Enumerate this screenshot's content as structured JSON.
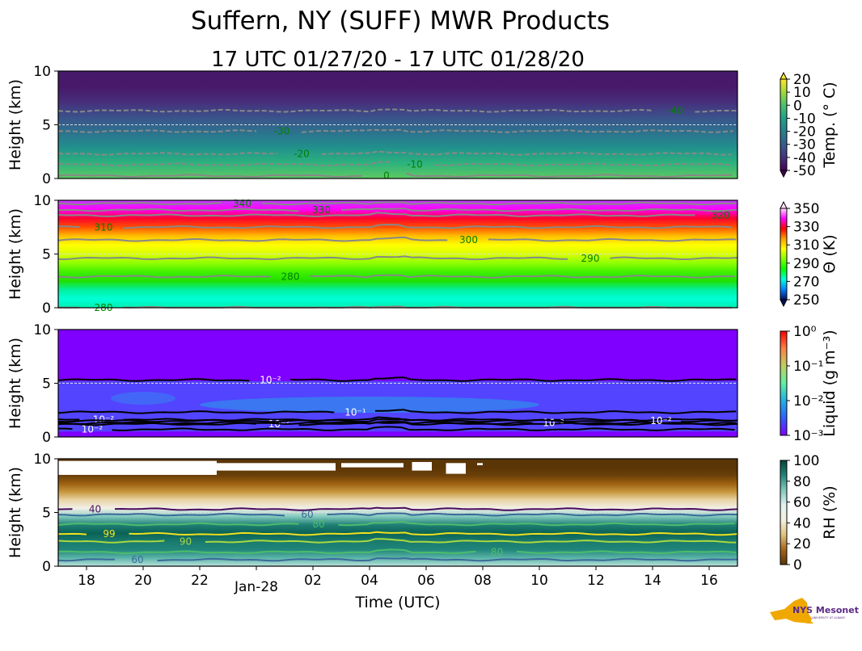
{
  "title": "Suffern, NY (SUFF) MWR Products",
  "subtitle": "17 UTC 01/27/20 - 17 UTC 01/28/20",
  "ylabel": "Height (km)",
  "xlabel": "Time (UTC)",
  "x_ticks": [
    {
      "hour": 1,
      "label": "18"
    },
    {
      "hour": 3,
      "label": "20"
    },
    {
      "hour": 5,
      "label": "22"
    },
    {
      "hour": 7,
      "label": "Jan-28"
    },
    {
      "hour": 9,
      "label": "02"
    },
    {
      "hour": 11,
      "label": "04"
    },
    {
      "hour": 13,
      "label": "06"
    },
    {
      "hour": 15,
      "label": "08"
    },
    {
      "hour": 17,
      "label": "10"
    },
    {
      "hour": 19,
      "label": "12"
    },
    {
      "hour": 21,
      "label": "14"
    },
    {
      "hour": 23,
      "label": "16"
    }
  ],
  "logo": {
    "text": "NYS Mesonet",
    "subtext": "UNIVERSITY AT ALBANY",
    "color": "#f0a800",
    "text_color": "#5b2a86"
  },
  "chart_data": [
    {
      "type": "heatmap",
      "name": "temperature",
      "xlim_hours_since_17utc": [
        0,
        24
      ],
      "ylim": [
        0,
        10
      ],
      "y_ticks": [
        "0",
        "5",
        "10"
      ],
      "colorbar": {
        "label": "Temp. (° C)",
        "ticks": [
          "20",
          "10",
          "0",
          "-10",
          "-20",
          "-30",
          "-40",
          "-50"
        ],
        "extend": "both",
        "colors": [
          "#fde725",
          "#a0da39",
          "#4ac16d",
          "#1fa187",
          "#277f8e",
          "#365c8d",
          "#46327e",
          "#440154"
        ]
      },
      "fill_colors_bottom_to_top": [
        "#5ec962",
        "#2db27d",
        "#21918c",
        "#2c728e",
        "#3b528b",
        "#472d7b",
        "#48186a",
        "#451a6b"
      ],
      "contours": [
        {
          "level": 0,
          "label": "0",
          "km": 0.25,
          "label_hour": 11.6,
          "dashed": false
        },
        {
          "level": -10,
          "label": "-10",
          "km": 1.3,
          "label_hour": 12.6,
          "dashed": true
        },
        {
          "level": -20,
          "label": "-20",
          "km": 2.3,
          "label_hour": 8.6,
          "dashed": true
        },
        {
          "level": -30,
          "label": "-30",
          "km": 4.4,
          "label_hour": 7.9,
          "dashed": true
        },
        {
          "level": -40,
          "label": "-40",
          "km": 6.3,
          "label_hour": 21.8,
          "dashed": true
        }
      ],
      "contour_line_color": "#888888",
      "contour_label_color": "#008000"
    },
    {
      "type": "heatmap",
      "name": "potential-temperature",
      "xlim_hours_since_17utc": [
        0,
        24
      ],
      "ylim": [
        0,
        10
      ],
      "y_ticks": [
        "0",
        "5",
        "10"
      ],
      "colorbar": {
        "label": "Θ (K)",
        "ticks": [
          "350",
          "330",
          "310",
          "290",
          "270",
          "250"
        ],
        "extend": "both",
        "colors": [
          "#ffe0ff",
          "#ff00ff",
          "#ff0000",
          "#ffa000",
          "#ffff00",
          "#80ff00",
          "#00ff00",
          "#00ffe0",
          "#0080ff",
          "#001060"
        ]
      },
      "fill_colors_bottom_to_top": [
        "#00f0b0",
        "#00ffd8",
        "#00f0a0",
        "#20e000",
        "#40f000",
        "#90ff00",
        "#d8ff00",
        "#ffff00",
        "#ffc000",
        "#ff5000",
        "#ff0030",
        "#ff00ff",
        "#c040ff"
      ],
      "contours": [
        {
          "level": 280,
          "label": "280",
          "km": 0.0,
          "label_hour": 1.6,
          "dashed": false
        },
        {
          "level": 280,
          "label": "280",
          "km": 2.9,
          "label_hour": 8.2,
          "dashed": false
        },
        {
          "level": 290,
          "label": "290",
          "km": 4.6,
          "label_hour": 18.8,
          "dashed": false
        },
        {
          "level": 300,
          "label": "300",
          "km": 6.3,
          "label_hour": 14.5,
          "dashed": false
        },
        {
          "level": 310,
          "label": "310",
          "km": 7.5,
          "label_hour": 1.6,
          "dashed": false
        },
        {
          "level": 320,
          "label": "320",
          "km": 8.6,
          "label_hour": 23.4,
          "dashed": false
        },
        {
          "level": 330,
          "label": "330",
          "km": 9.1,
          "label_hour": 9.3,
          "dashed": false
        },
        {
          "level": 340,
          "label": "340",
          "km": 9.7,
          "label_hour": 6.5,
          "dashed": false
        }
      ],
      "contour_line_color": "#888888",
      "contour_label_color": "#008000"
    },
    {
      "type": "heatmap",
      "name": "liquid-water",
      "xlim_hours_since_17utc": [
        0,
        24
      ],
      "ylim": [
        0,
        10
      ],
      "y_ticks": [
        "0",
        "5",
        "10"
      ],
      "colorbar": {
        "label": "Liquid (g m⁻³)",
        "ticks": [
          "10⁰",
          "10⁻¹",
          "10⁻²",
          "10⁻³"
        ],
        "scale": "log",
        "colors": [
          "#ff0000",
          "#ff8040",
          "#c0d060",
          "#60f0a0",
          "#20b0e8",
          "#3060ff",
          "#7f00ff"
        ]
      },
      "background_color": "#7f00ff",
      "cloud_layer_km": [
        0.5,
        5.2
      ],
      "cloud_color": "#4a50ff",
      "cloud_core_color": "#2c9ae8",
      "contours": [
        {
          "level": 0.01,
          "label": "10⁻²",
          "km": 5.3,
          "label_hour": 7.5,
          "dashed": false
        },
        {
          "level": 0.01,
          "label": "10⁻²",
          "km": 0.7,
          "label_hour": 1.2,
          "dashed": false
        },
        {
          "level": 0.01,
          "label": "10⁻²",
          "km": 1.6,
          "label_hour": 1.6,
          "dashed": false
        },
        {
          "level": 0.01,
          "label": "10⁻²",
          "km": 1.2,
          "label_hour": 7.8,
          "dashed": false
        },
        {
          "level": 0.01,
          "label": "10⁻²",
          "km": 1.3,
          "label_hour": 17.5,
          "dashed": false
        },
        {
          "level": 0.01,
          "label": "10⁻²",
          "km": 1.5,
          "label_hour": 21.3,
          "dashed": false
        },
        {
          "level": 0.1,
          "label": "10⁻¹",
          "km": 2.3,
          "label_hour": 10.5,
          "dashed": false
        }
      ],
      "contour_line_color": "#000000",
      "contour_label_color": "#ffffff"
    },
    {
      "type": "heatmap",
      "name": "relative-humidity",
      "xlim_hours_since_17utc": [
        0,
        24
      ],
      "ylim": [
        0,
        10
      ],
      "y_ticks": [
        "0",
        "5",
        "10"
      ],
      "colorbar": {
        "label": "RH (%)",
        "ticks": [
          "100",
          "80",
          "60",
          "40",
          "20",
          "0"
        ],
        "colors": [
          "#01453a",
          "#218579",
          "#80c8bc",
          "#e0f2f0",
          "#f5f0e0",
          "#dfc27d",
          "#a6651a",
          "#5a3505"
        ]
      },
      "fill_colors_bottom_to_top": [
        "#b8e0da",
        "#5ab4a8",
        "#218579",
        "#1a7a6e",
        "#0a6256",
        "#207f74",
        "#80c8bc",
        "#f2f0e8",
        "#ead4a8",
        "#c8963e",
        "#9c6010",
        "#6a3f08",
        "#5a3505",
        "#5a3505"
      ],
      "missing_regions_hours_km": [
        [
          0,
          5.6,
          8.5,
          9.8
        ],
        [
          5.6,
          9.8,
          8.9,
          9.6
        ],
        [
          10,
          12.2,
          9.2,
          9.6
        ],
        [
          12.5,
          13.2,
          8.9,
          9.7
        ],
        [
          13.7,
          14.4,
          8.6,
          9.6
        ],
        [
          14.8,
          15.0,
          9.4,
          9.6
        ]
      ],
      "contours": [
        {
          "level": 40,
          "label": "40",
          "km": 5.3,
          "label_hour": 1.3,
          "dashed": false,
          "color": "#4b0c5e"
        },
        {
          "level": 60,
          "label": "60",
          "km": 4.8,
          "label_hour": 8.8,
          "dashed": false,
          "color": "#3b6a9a"
        },
        {
          "level": 60,
          "label": "60",
          "km": 0.6,
          "label_hour": 2.8,
          "dashed": false,
          "color": "#3b6a9a"
        },
        {
          "level": 80,
          "label": "80",
          "km": 3.9,
          "label_hour": 9.2,
          "dashed": false,
          "color": "#4cbc6a"
        },
        {
          "level": 80,
          "label": "80",
          "km": 1.3,
          "label_hour": 15.5,
          "dashed": false,
          "color": "#4cbc6a"
        },
        {
          "level": 90,
          "label": "90",
          "km": 2.3,
          "label_hour": 4.5,
          "dashed": false,
          "color": "#a8d840"
        },
        {
          "level": 99,
          "label": "99",
          "km": 3.0,
          "label_hour": 1.8,
          "dashed": false,
          "color": "#f0e020"
        }
      ],
      "contour_label_color": "#3b6a9a"
    }
  ]
}
